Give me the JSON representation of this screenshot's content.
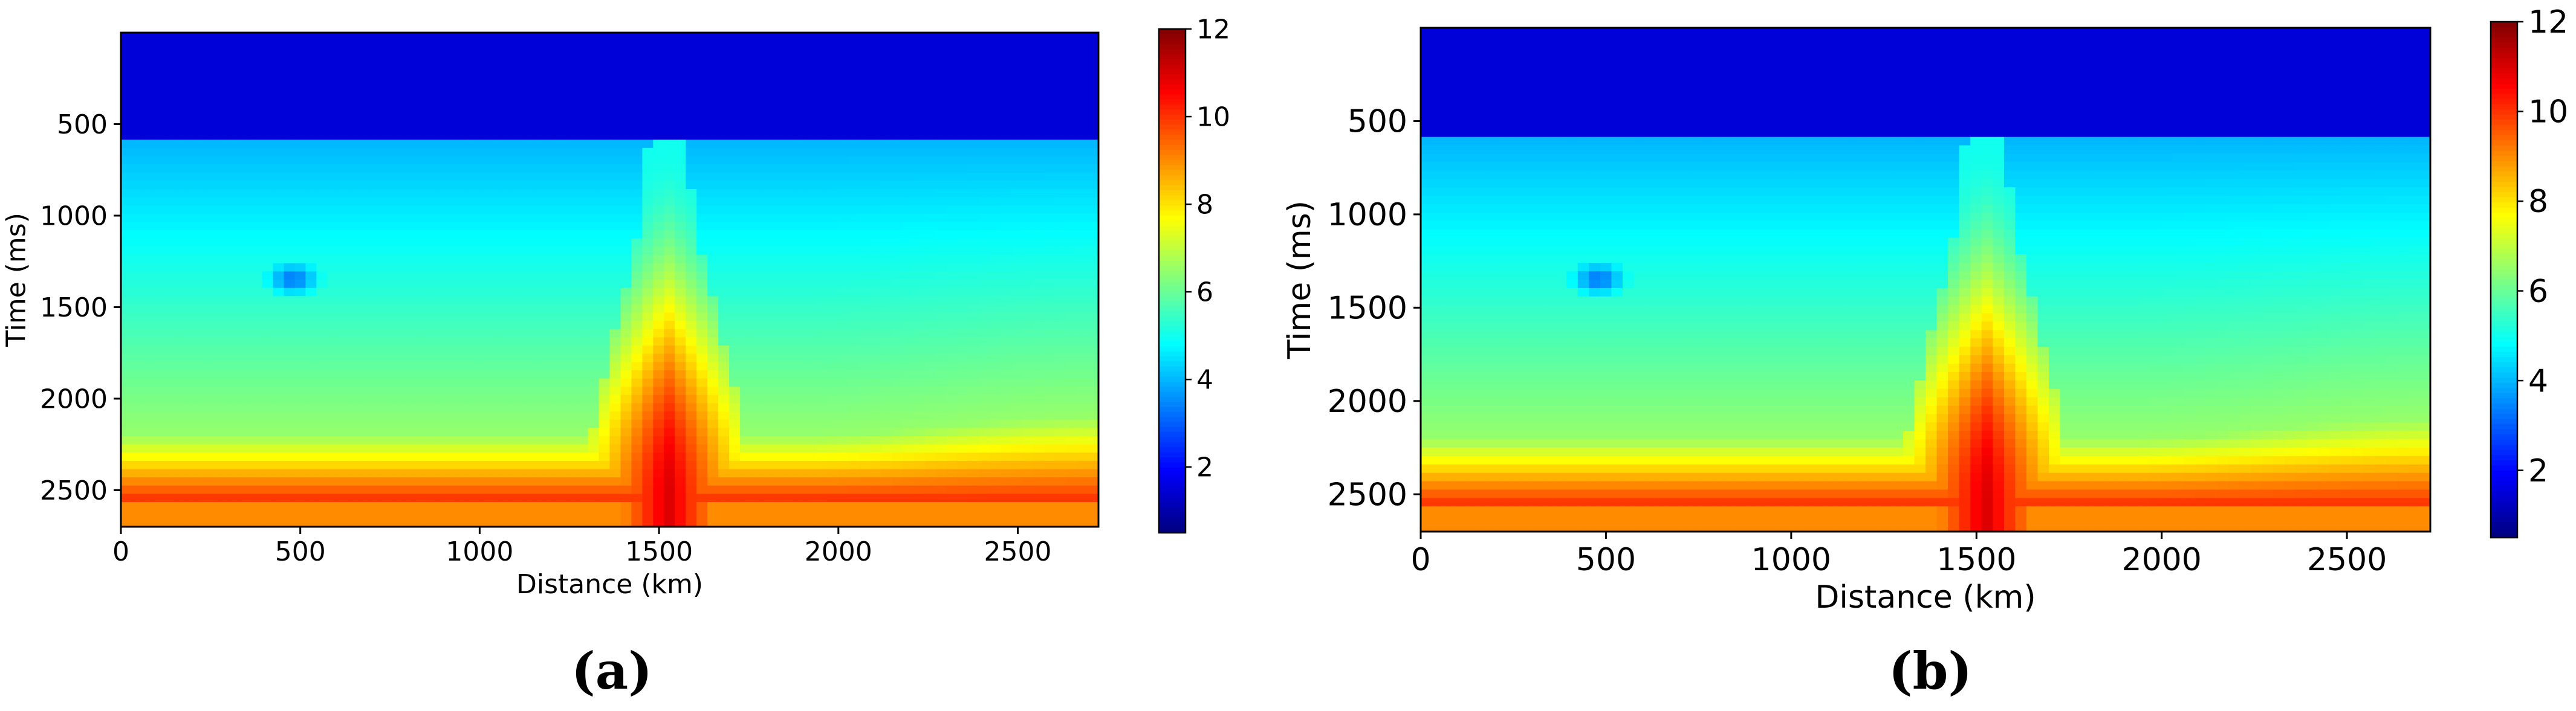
{
  "chart_data": [
    {
      "type": "heatmap",
      "caption": "(a)",
      "xlabel": "Distance (km)",
      "ylabel": "Time (ms)",
      "xlim": [
        0,
        2725
      ],
      "ylim": [
        2700,
        0
      ],
      "x_ticks": [
        0,
        500,
        1000,
        1500,
        2000,
        2500
      ],
      "x_tick_labels": [
        "0",
        "500",
        "1000",
        "1500",
        "2000",
        "2500"
      ],
      "y_ticks": [
        500,
        1000,
        1500,
        2000,
        2500
      ],
      "y_tick_labels": [
        "500",
        "1000",
        "1500",
        "2000",
        "2500"
      ],
      "colorbar": {
        "min": 0.5,
        "max": 12,
        "ticks": [
          2,
          4,
          6,
          8,
          10,
          12
        ],
        "tick_labels": [
          "2",
          "4",
          "6",
          "8",
          "10",
          "12"
        ],
        "colormap": "jet"
      },
      "interfaces_ms": [
        600,
        2200,
        2550
      ],
      "layer_values": [
        1.5,
        4.0,
        6.5,
        10.0,
        9.0
      ],
      "salt_zone_km": [
        1300,
        1750
      ],
      "anomaly_center_km_ms": [
        480,
        1350
      ]
    },
    {
      "type": "heatmap",
      "caption": "(b)",
      "xlabel": "Distance (km)",
      "ylabel": "Time (ms)",
      "xlim": [
        0,
        2725
      ],
      "ylim": [
        2700,
        0
      ],
      "x_ticks": [
        0,
        500,
        1000,
        1500,
        2000,
        2500
      ],
      "x_tick_labels": [
        "0",
        "500",
        "1000",
        "1500",
        "2000",
        "2500"
      ],
      "y_ticks": [
        500,
        1000,
        1500,
        2000,
        2500
      ],
      "y_tick_labels": [
        "500",
        "1000",
        "1500",
        "2000",
        "2500"
      ],
      "colorbar": {
        "min": 0.5,
        "max": 12,
        "ticks": [
          2,
          4,
          6,
          8,
          10,
          12
        ],
        "tick_labels": [
          "2",
          "4",
          "6",
          "8",
          "10",
          "12"
        ],
        "colormap": "jet"
      },
      "interfaces_ms": [
        600,
        2200,
        2550
      ],
      "layer_values": [
        1.5,
        4.0,
        6.5,
        10.0,
        9.0
      ],
      "salt_zone_km": [
        1300,
        1750
      ],
      "anomaly_center_km_ms": [
        480,
        1350
      ]
    }
  ],
  "colors": {
    "axis": "#000000",
    "background": "#ffffff"
  }
}
